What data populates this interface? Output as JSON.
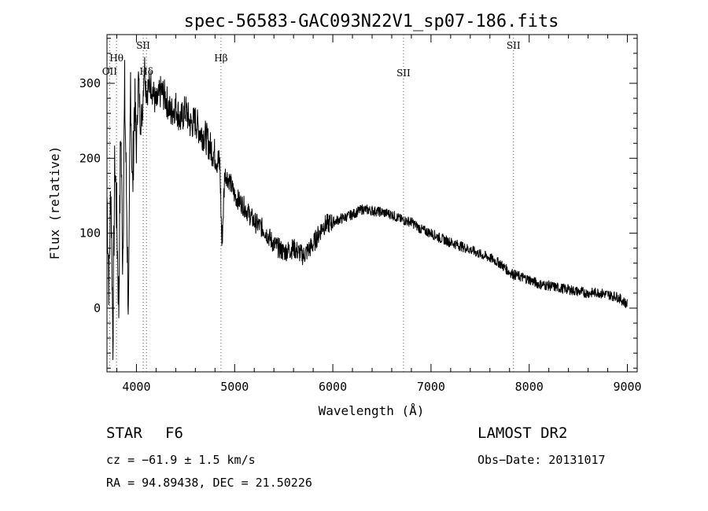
{
  "chart_data": {
    "type": "line",
    "title": "spec-56583-GAC093N22V1_sp07-186.fits",
    "xlabel": "Wavelength (Å)",
    "ylabel": "Flux (relative)",
    "xlim": [
      3700,
      9100
    ],
    "ylim": [
      -85,
      365
    ],
    "xticks": [
      4000,
      5000,
      6000,
      7000,
      8000,
      9000
    ],
    "yticks": [
      0,
      100,
      200,
      300
    ],
    "grid": false,
    "series": [
      {
        "x": [
          3700,
          3720,
          3740,
          3760,
          3780,
          3800,
          3820,
          3840,
          3860,
          3880,
          3900,
          3920,
          3940,
          3960,
          3980,
          4000,
          4020,
          4040,
          4060,
          4080,
          4100,
          4150,
          4200,
          4250,
          4300,
          4350,
          4400,
          4450,
          4500,
          4550,
          4600,
          4650,
          4700,
          4750,
          4800,
          4850,
          4870,
          4900,
          4950,
          5000,
          5100,
          5200,
          5300,
          5400,
          5500,
          5600,
          5700,
          5800,
          5900,
          6000,
          6100,
          6200,
          6300,
          6400,
          6500,
          6600,
          6700,
          6800,
          6900,
          7000,
          7100,
          7200,
          7300,
          7400,
          7500,
          7600,
          7700,
          7800,
          7900,
          8000,
          8100,
          8200,
          8300,
          8400,
          8500,
          8600,
          8700,
          8800,
          8900,
          9000
        ],
        "y": [
          150,
          30,
          170,
          -40,
          200,
          120,
          0,
          250,
          60,
          290,
          140,
          -20,
          310,
          150,
          280,
          210,
          310,
          250,
          260,
          330,
          290,
          300,
          270,
          290,
          280,
          260,
          270,
          250,
          265,
          245,
          250,
          235,
          230,
          215,
          205,
          190,
          85,
          180,
          170,
          150,
          135,
          115,
          105,
          85,
          75,
          80,
          70,
          85,
          110,
          115,
          120,
          125,
          132,
          130,
          128,
          125,
          118,
          115,
          105,
          100,
          93,
          88,
          83,
          78,
          72,
          67,
          60,
          48,
          42,
          38,
          32,
          30,
          27,
          25,
          22,
          20,
          21,
          18,
          15,
          5
        ]
      }
    ],
    "line_markers": [
      {
        "label": "OII",
        "x": 3727
      },
      {
        "label": "Hθ",
        "x": 3797
      },
      {
        "label": "SII",
        "x": 4069
      },
      {
        "label": "Hδ",
        "x": 4102
      },
      {
        "label": "Hβ",
        "x": 4861
      },
      {
        "label": "SII",
        "x": 6720
      },
      {
        "label": "SII",
        "x": 7840
      }
    ]
  },
  "info": {
    "class": "STAR",
    "subclass": "F6",
    "survey": "LAMOST DR2",
    "cz": "cz = −61.9 ± 1.5 km/s",
    "obs_date": "Obs−Date: 20131017",
    "coords": "RA =  94.89438, DEC =  21.50226"
  }
}
